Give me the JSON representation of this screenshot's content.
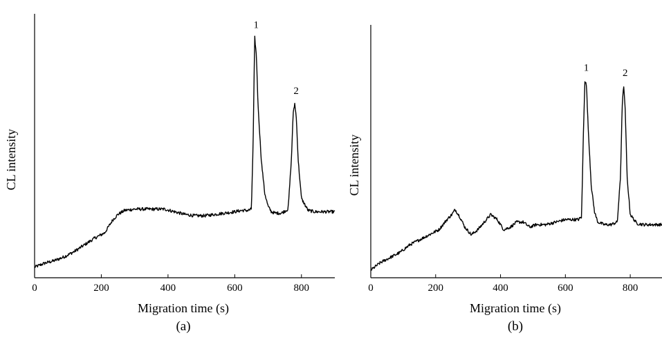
{
  "chart_data": [
    {
      "type": "line",
      "panel_label": "(a)",
      "xlabel": "Migration time (s)",
      "ylabel": "CL intensity",
      "xlim": [
        0,
        900
      ],
      "ylim": [
        0,
        1
      ],
      "x_ticks": [
        0,
        200,
        400,
        600,
        800
      ],
      "x_tick_labels": [
        "0",
        "200",
        "400",
        "600",
        "800"
      ],
      "y_ticks_labeled": false,
      "grid": false,
      "legend": "none",
      "series": [
        {
          "x": [
            0,
            30,
            60,
            90,
            120,
            150,
            180,
            210,
            235,
            250,
            270,
            300,
            330,
            360,
            390,
            420,
            450,
            480,
            510,
            540,
            570,
            600,
            620,
            640,
            650,
            655,
            660,
            665,
            670,
            680,
            690,
            700,
            710,
            720,
            740,
            760,
            770,
            775,
            780,
            785,
            790,
            800,
            820,
            840,
            860,
            880,
            900
          ],
          "y": [
            0.04,
            0.055,
            0.065,
            0.08,
            0.1,
            0.125,
            0.15,
            0.17,
            0.22,
            0.24,
            0.255,
            0.26,
            0.26,
            0.26,
            0.26,
            0.25,
            0.24,
            0.235,
            0.235,
            0.24,
            0.245,
            0.25,
            0.255,
            0.255,
            0.26,
            0.5,
            0.91,
            0.84,
            0.65,
            0.44,
            0.32,
            0.27,
            0.25,
            0.245,
            0.245,
            0.26,
            0.45,
            0.62,
            0.66,
            0.6,
            0.45,
            0.3,
            0.255,
            0.25,
            0.25,
            0.25,
            0.25
          ]
        }
      ],
      "annotations": [
        {
          "text": "1",
          "x": 660,
          "y": 0.91
        },
        {
          "text": "2",
          "x": 780,
          "y": 0.66
        }
      ]
    },
    {
      "type": "line",
      "panel_label": "(b)",
      "xlabel": "Migration time (s)",
      "ylabel": "CL intensity",
      "xlim": [
        0,
        900
      ],
      "ylim": [
        0,
        1
      ],
      "x_ticks": [
        0,
        200,
        400,
        600,
        800
      ],
      "x_tick_labels": [
        "0",
        "200",
        "400",
        "600",
        "800"
      ],
      "y_ticks_labeled": false,
      "grid": false,
      "legend": "none",
      "series": [
        {
          "x": [
            0,
            30,
            60,
            90,
            120,
            150,
            180,
            210,
            235,
            250,
            260,
            275,
            290,
            310,
            330,
            350,
            370,
            390,
            410,
            430,
            450,
            470,
            490,
            510,
            540,
            570,
            600,
            620,
            640,
            650,
            655,
            660,
            665,
            670,
            680,
            690,
            700,
            720,
            740,
            760,
            770,
            775,
            780,
            785,
            790,
            800,
            820,
            840,
            860,
            880,
            900
          ],
          "y": [
            0.03,
            0.06,
            0.08,
            0.1,
            0.13,
            0.15,
            0.17,
            0.19,
            0.23,
            0.25,
            0.27,
            0.24,
            0.2,
            0.17,
            0.19,
            0.22,
            0.25,
            0.23,
            0.19,
            0.2,
            0.22,
            0.22,
            0.2,
            0.21,
            0.21,
            0.22,
            0.23,
            0.23,
            0.23,
            0.24,
            0.55,
            0.78,
            0.76,
            0.6,
            0.36,
            0.26,
            0.22,
            0.21,
            0.21,
            0.22,
            0.4,
            0.68,
            0.76,
            0.65,
            0.4,
            0.25,
            0.215,
            0.21,
            0.21,
            0.21,
            0.21
          ]
        }
      ],
      "annotations": [
        {
          "text": "1",
          "x": 660,
          "y": 0.78
        },
        {
          "text": "2",
          "x": 780,
          "y": 0.76
        }
      ]
    }
  ]
}
